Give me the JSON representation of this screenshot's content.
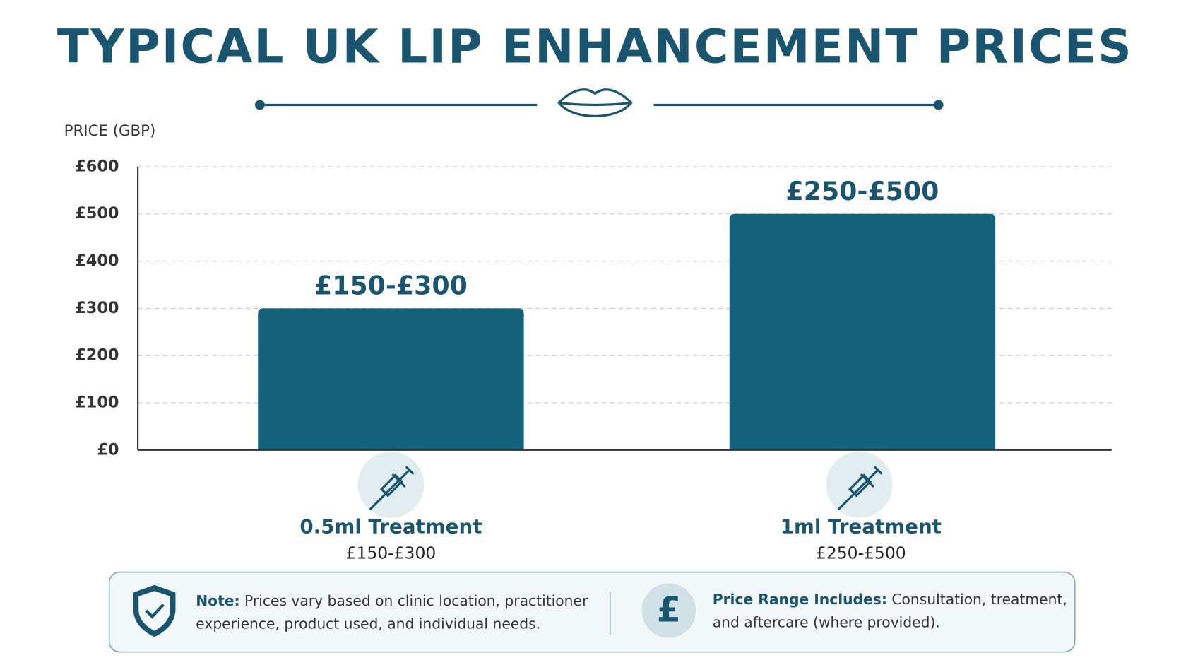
{
  "chart_data": {
    "type": "bar",
    "title": "TYPICAL UK LIP ENHANCEMENT PRICES",
    "y_label": "PRICE (GBP)",
    "categories": [
      "0.5ml Treatment",
      "1ml Treatment"
    ],
    "category_sublabels": [
      "£150-£300",
      "£250-£500"
    ],
    "values": [
      300,
      500
    ],
    "value_labels": [
      "£150-£300",
      "£250-£500"
    ],
    "color": "#13617a",
    "ylim": [
      0,
      600
    ],
    "yticks": [
      {
        "value": 0,
        "label": "£0"
      },
      {
        "value": 100,
        "label": "£100"
      },
      {
        "value": 200,
        "label": "£200"
      },
      {
        "value": 300,
        "label": "£300"
      },
      {
        "value": 400,
        "label": "£400"
      },
      {
        "value": 500,
        "label": "£500"
      },
      {
        "value": 600,
        "label": "£600"
      }
    ],
    "grid": true
  },
  "footer": {
    "note": {
      "label": "Note:",
      "lines": [
        "Prices vary based on clinic location, practitioner",
        "experience, product used, and individual needs."
      ]
    },
    "includes": {
      "label": "Price Range Includes:",
      "lines": [
        "Consultation, treatment,",
        "and aftercare (where provided)."
      ]
    }
  }
}
